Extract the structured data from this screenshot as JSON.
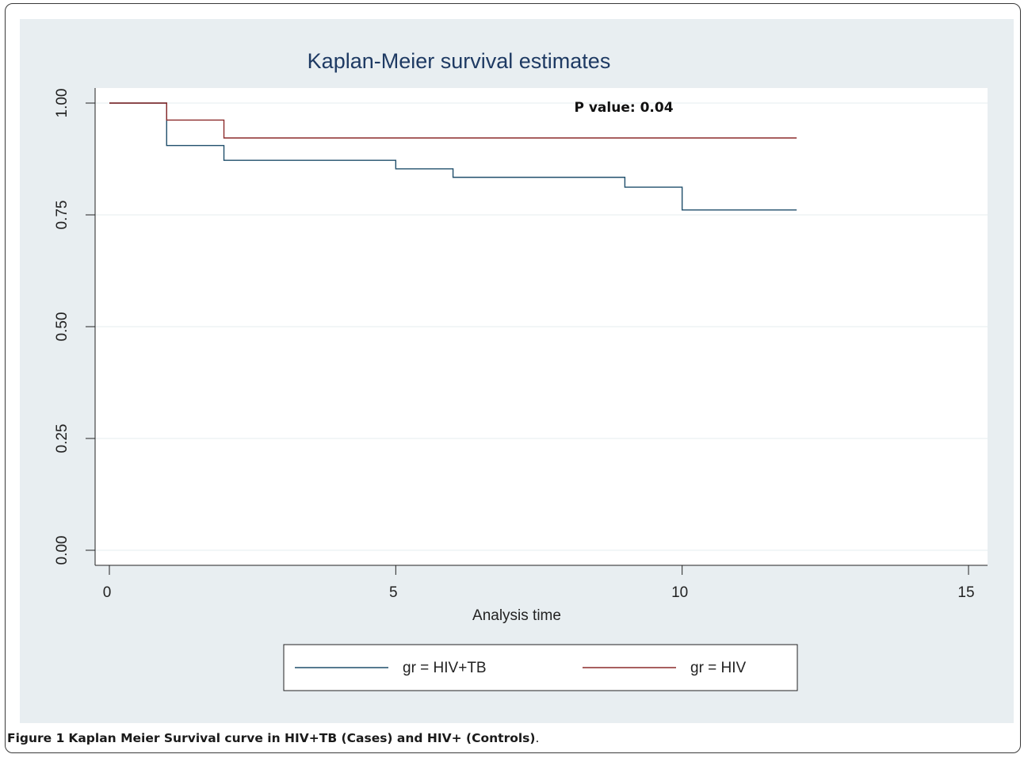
{
  "chart_data": {
    "type": "line",
    "title": "Kaplan-Meier survival estimates",
    "xlabel": "Analysis time",
    "ylabel": "",
    "xlim": [
      0,
      15
    ],
    "ylim": [
      0,
      1
    ],
    "xticks": [
      0,
      5,
      10,
      15
    ],
    "xtick_labels": [
      "0",
      "5",
      "10",
      "15"
    ],
    "yticks": [
      0,
      0.25,
      0.5,
      0.75,
      1
    ],
    "ytick_labels": [
      "0.00",
      "0.25",
      "0.50",
      "0.75",
      "1.00"
    ],
    "grid": true,
    "step": true,
    "annotation": "P value: 0.04",
    "legend_position": "bottom",
    "series": [
      {
        "name": "gr = HIV+TB",
        "color": "#1f4e6b",
        "x": [
          0,
          1,
          2,
          5,
          6,
          9,
          10,
          12
        ],
        "y": [
          1.0,
          0.905,
          0.872,
          0.853,
          0.834,
          0.812,
          0.761,
          0.761
        ]
      },
      {
        "name": "gr = HIV",
        "color": "#8b2a2a",
        "x": [
          0,
          1,
          2,
          12
        ],
        "y": [
          1.0,
          0.962,
          0.922,
          0.922
        ]
      }
    ]
  },
  "caption": {
    "label": "Figure 1",
    "text": "Kaplan Meier Survival curve in HIV+TB (Cases) and HIV+ (Controls)",
    "end": "."
  }
}
